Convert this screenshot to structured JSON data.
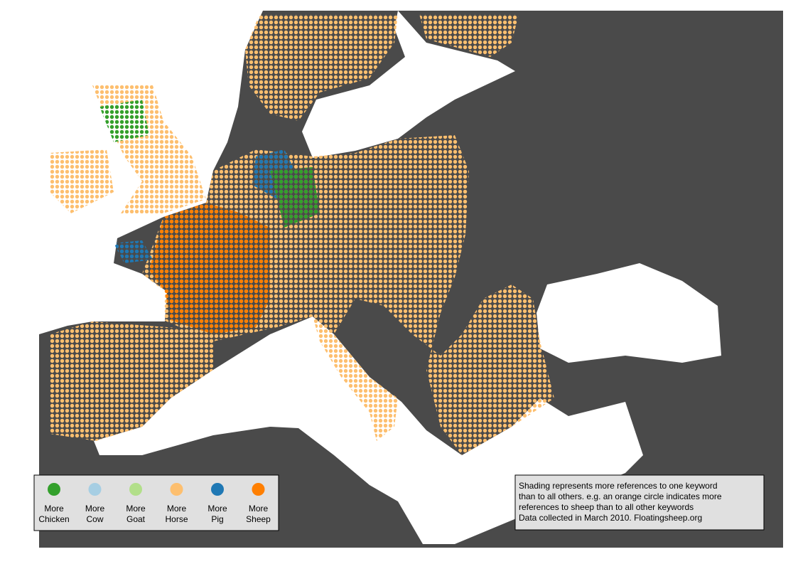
{
  "legend": {
    "items": [
      {
        "label": [
          "More",
          "Chicken"
        ],
        "color": "#33a02c"
      },
      {
        "label": [
          "More",
          "Cow"
        ],
        "color": "#a6cee3"
      },
      {
        "label": [
          "More",
          "Goat"
        ],
        "color": "#b2df8a"
      },
      {
        "label": [
          "More",
          "Horse"
        ],
        "color": "#fdbf6f"
      },
      {
        "label": [
          "More",
          "Pig"
        ],
        "color": "#1f78b4"
      },
      {
        "label": [
          "More",
          "Sheep"
        ],
        "color": "#ff7f00"
      }
    ]
  },
  "note": {
    "lines": [
      "Shading represents more references to one keyword",
      "than to all others. e.g. an orange circle indicates more",
      "references to sheep than to all other keywords",
      "Data collected in March 2010. Floatingsheep.org"
    ]
  }
}
